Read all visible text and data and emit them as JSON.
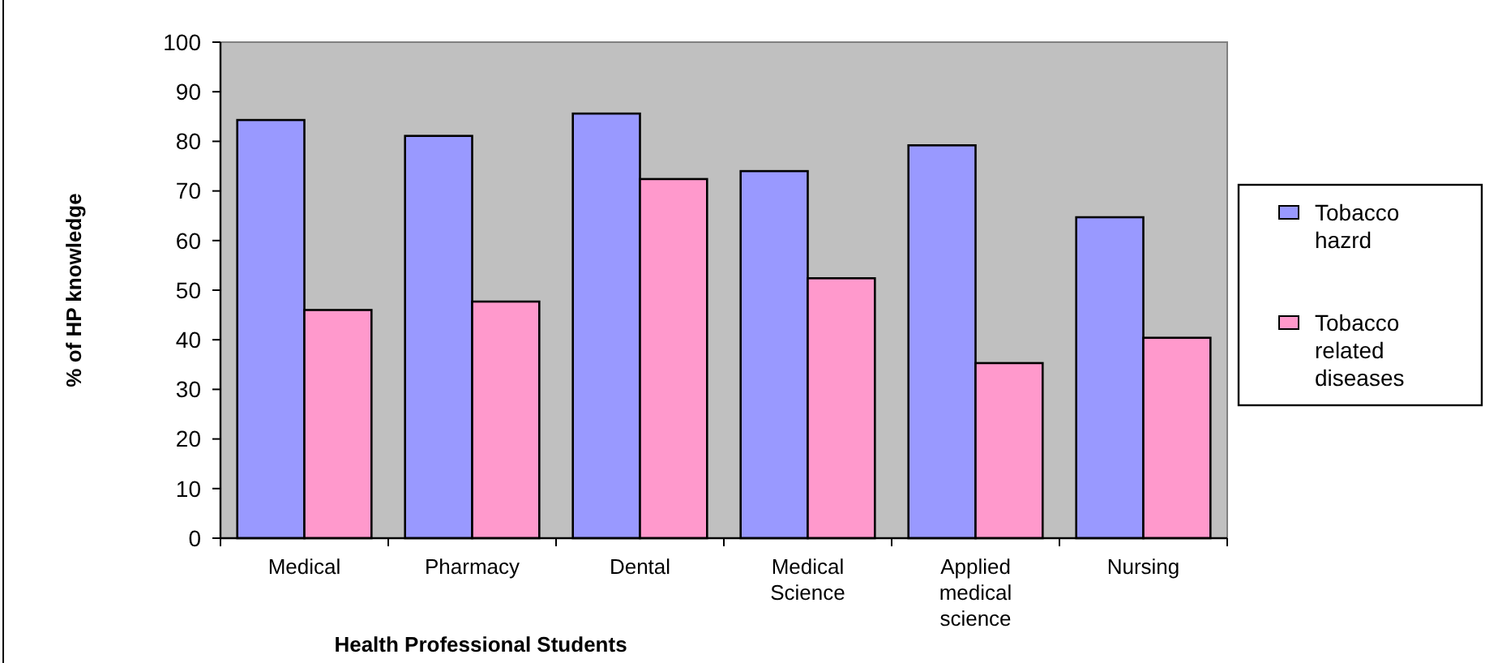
{
  "chart_data": {
    "type": "bar",
    "xlabel": "Health Professional Students",
    "ylabel": "% of HP knowledge",
    "categories": [
      "Medical",
      "Pharmacy",
      "Dental",
      "Medical Science",
      "Applied medical science",
      "Nursing"
    ],
    "series": [
      {
        "name": "Tobacco hazrd",
        "color": "#9999ff",
        "values": [
          84.3,
          81.1,
          85.6,
          74.0,
          79.2,
          64.7
        ]
      },
      {
        "name": "Tobacco related diseases",
        "color": "#ff99cc",
        "values": [
          46.0,
          47.7,
          72.4,
          52.4,
          35.3,
          40.4
        ]
      }
    ],
    "ylim": [
      0,
      100
    ],
    "yticks": [
      0,
      10,
      20,
      30,
      40,
      50,
      60,
      70,
      80,
      90,
      100
    ],
    "legend": "right",
    "grid": false
  }
}
